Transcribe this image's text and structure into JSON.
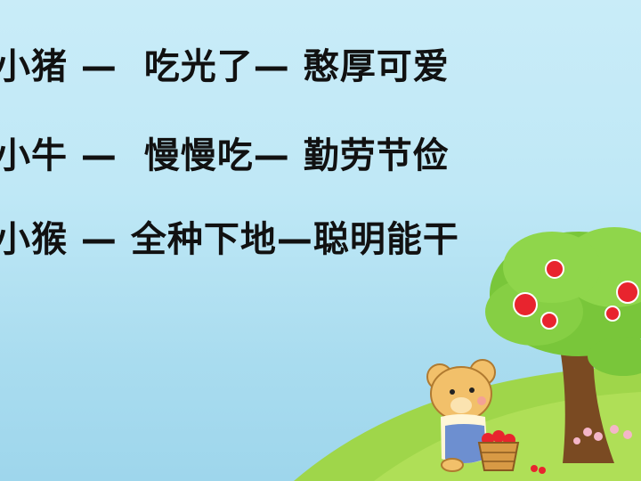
{
  "lines": [
    {
      "animal": "小猪",
      "sep1": " —  ",
      "action": "吃光了",
      "sep2": "— ",
      "trait": "憨厚可爱"
    },
    {
      "animal": "小牛",
      "sep1": " —  ",
      "action": "慢慢吃",
      "sep2": "— ",
      "trait": "勤劳节俭"
    },
    {
      "animal": "小猴",
      "sep1": " — ",
      "action": "全种下地",
      "sep2": "—",
      "trait": "聪明能干"
    }
  ],
  "colors": {
    "sky": "#c9ecf8",
    "grass": "#9fd64a",
    "tree_leaves": "#79c63a",
    "trunk": "#7a4a22",
    "fruit": "#e8242e",
    "bear": "#f2c06a"
  },
  "icons": [
    "apple-tree-illustration",
    "teddy-bear-illustration",
    "fruit-basket-illustration"
  ]
}
